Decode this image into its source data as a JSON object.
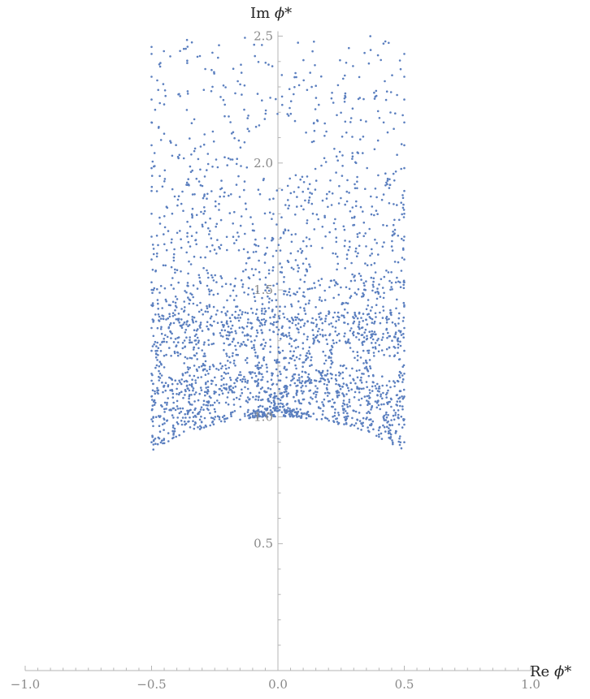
{
  "chart_data": {
    "type": "scatter",
    "title": "",
    "xlabel": "Re ϕ*",
    "ylabel": "Im ϕ*",
    "xlim": [
      -1.0,
      1.0
    ],
    "ylim": [
      0.0,
      2.5
    ],
    "x_ticks": [
      "−1.0",
      "−0.5",
      "0.0",
      "0.5",
      "1.0"
    ],
    "y_ticks": [
      "0.5",
      "1.0",
      "1.5",
      "2.0",
      "2.5"
    ],
    "x_tick_values": [
      -1.0,
      -0.5,
      0.0,
      0.5,
      1.0
    ],
    "y_tick_values": [
      0.5,
      1.0,
      1.5,
      2.0,
      2.5
    ],
    "grid": false,
    "series": [
      {
        "color": "#5b7fbf",
        "point_count_approx": 2500,
        "region": {
          "description_units": "data",
          "x_range": [
            -0.5,
            0.5
          ],
          "y_range": [
            0.87,
            2.5
          ],
          "lower_boundary": "unit circle |phi| >= 1 (fundamental-domain-like arcs), dense near Im=0.9–1.4, sparse above 1.5",
          "dense_cluster_points": [
            [
              -0.08,
              1.01
            ],
            [
              0.08,
              1.01
            ],
            [
              0.0,
              1.11
            ]
          ]
        }
      }
    ]
  }
}
